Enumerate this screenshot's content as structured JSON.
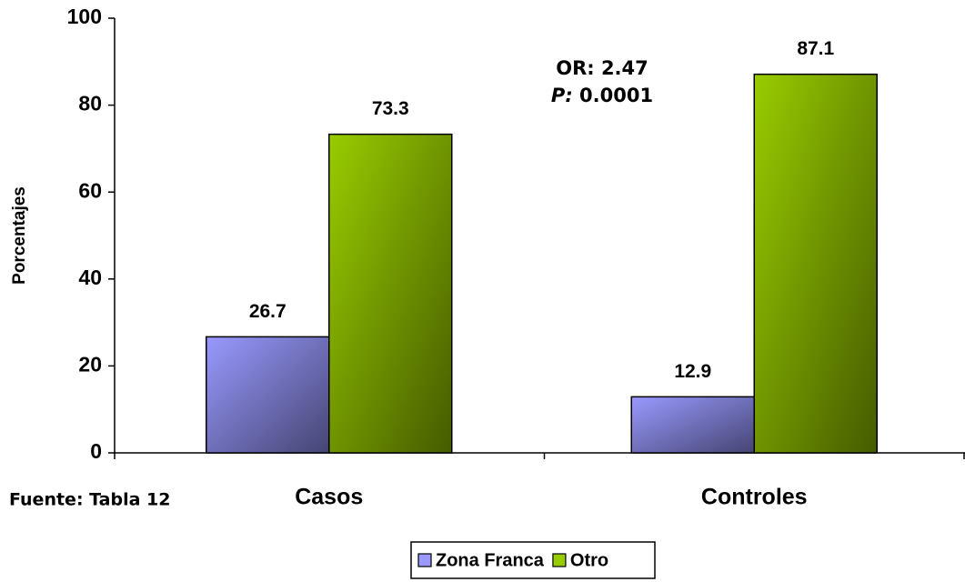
{
  "chart_data": {
    "type": "bar",
    "y_label": "Porcentajes",
    "categories": [
      "Casos",
      "Controles"
    ],
    "series": [
      {
        "name": "Zona Franca",
        "color": "#9999ff",
        "values": [
          26.7,
          12.9
        ]
      },
      {
        "name": "Otro",
        "color": "#99cc00",
        "values": [
          73.3,
          87.1
        ]
      }
    ],
    "ylim": [
      0,
      100
    ],
    "yticks": [
      0,
      20,
      40,
      60,
      80,
      100
    ],
    "annotations": [
      "OR: 2.47",
      "P:",
      "0.0001"
    ],
    "annotation_color": "#ff0000",
    "source": "Fuente: Tabla 12",
    "legend": "bottom"
  }
}
